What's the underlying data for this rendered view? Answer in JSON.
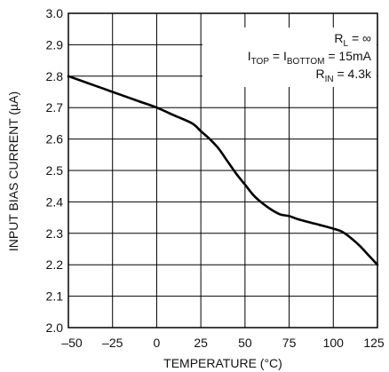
{
  "chart_data": {
    "type": "line",
    "xlabel": "TEMPERATURE (°C)",
    "ylabel": "INPUT BIAS CURRENT (µA)",
    "xlim": [
      -50,
      125
    ],
    "ylim": [
      2.0,
      3.0
    ],
    "x_ticks": [
      -50,
      -25,
      0,
      25,
      50,
      75,
      100,
      125
    ],
    "x_tick_labels": [
      "–50",
      "–25",
      "0",
      "25",
      "50",
      "75",
      "100",
      "125"
    ],
    "y_ticks": [
      2.0,
      2.1,
      2.2,
      2.3,
      2.4,
      2.5,
      2.6,
      2.7,
      2.8,
      2.9,
      3.0
    ],
    "y_tick_labels": [
      "2.0",
      "2.1",
      "2.2",
      "2.3",
      "2.4",
      "2.5",
      "2.6",
      "2.7",
      "2.8",
      "2.9",
      "3.0"
    ],
    "grid": true,
    "annotations": {
      "line1": {
        "main": "R",
        "sub": "L",
        "rest": " = ∞"
      },
      "line2": {
        "p1": "I",
        "s1": "TOP",
        "p2": " = I",
        "s2": "BOTTOM",
        "p3": " = 15mA"
      },
      "line3": {
        "main": "R",
        "sub": "IN",
        "rest": " = 4.3k"
      }
    },
    "series": [
      {
        "x": [
          -50,
          -40,
          -30,
          -20,
          -10,
          0,
          10,
          20,
          25,
          30,
          35,
          40,
          45,
          50,
          55,
          60,
          65,
          70,
          75,
          80,
          90,
          100,
          105,
          110,
          115,
          120,
          125
        ],
        "y": [
          2.8,
          2.78,
          2.76,
          2.74,
          2.72,
          2.7,
          2.675,
          2.65,
          2.625,
          2.6,
          2.57,
          2.53,
          2.49,
          2.455,
          2.42,
          2.395,
          2.375,
          2.36,
          2.355,
          2.345,
          2.33,
          2.315,
          2.305,
          2.285,
          2.26,
          2.23,
          2.2
        ]
      }
    ]
  }
}
